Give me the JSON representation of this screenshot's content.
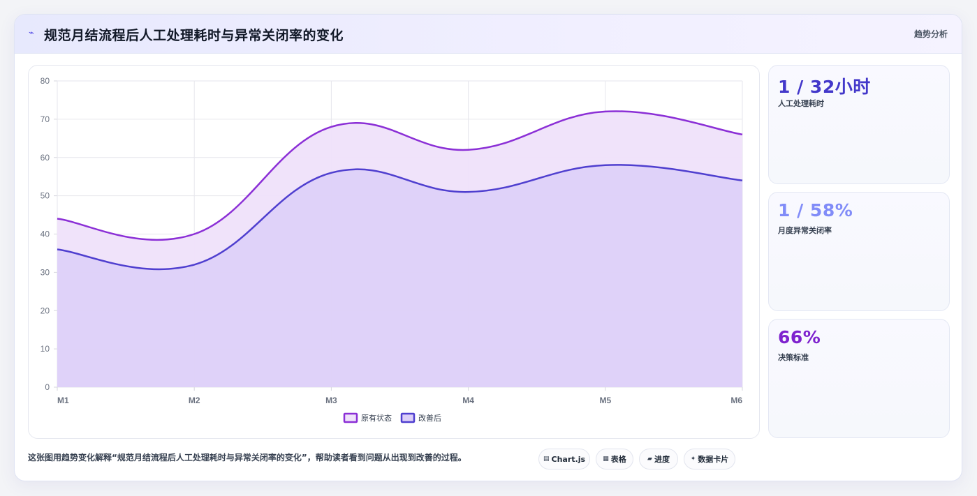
{
  "header": {
    "icon": "trend-line-icon",
    "title": "规范月结流程后人工处理耗时与异常关闭率的变化",
    "tag": "趋势分析"
  },
  "stats": [
    {
      "value": "1 / 32小时",
      "label": "人工处理耗时",
      "color": "#4338ca"
    },
    {
      "value": "1 / 58%",
      "label": "月度异常关闭率",
      "color": "#818cf8"
    },
    {
      "value": "66%",
      "label": "决策标准",
      "color": "#7e22ce"
    }
  ],
  "footer": {
    "text": "这张图用趋势变化解释“规范月结流程后人工处理耗时与异常关闭率的变化”，帮助读者看到问题从出现到改善的过程。",
    "pills": [
      {
        "icon": "chart-icon",
        "label": "Chart.js"
      },
      {
        "icon": "table-icon",
        "label": "表格"
      },
      {
        "icon": "progress-icon",
        "label": "进度"
      },
      {
        "icon": "card-icon",
        "label": "数据卡片"
      }
    ]
  },
  "chart_data": {
    "type": "area",
    "x": [
      "M1",
      "M2",
      "M3",
      "M4",
      "M5",
      "M6"
    ],
    "series": [
      {
        "name": "原有状态",
        "values": [
          44,
          40,
          68,
          62,
          72,
          66
        ],
        "color": "#8b2fd6",
        "fill": "#efe1fa"
      },
      {
        "name": "改善后",
        "values": [
          36,
          32,
          56,
          51,
          58,
          54
        ],
        "color": "#4f3fcf",
        "fill": "#dccff8"
      }
    ],
    "ylim": [
      0,
      80
    ],
    "yticks": [
      0,
      10,
      20,
      30,
      40,
      50,
      60,
      70,
      80
    ],
    "grid": true,
    "legend": "bottom"
  }
}
